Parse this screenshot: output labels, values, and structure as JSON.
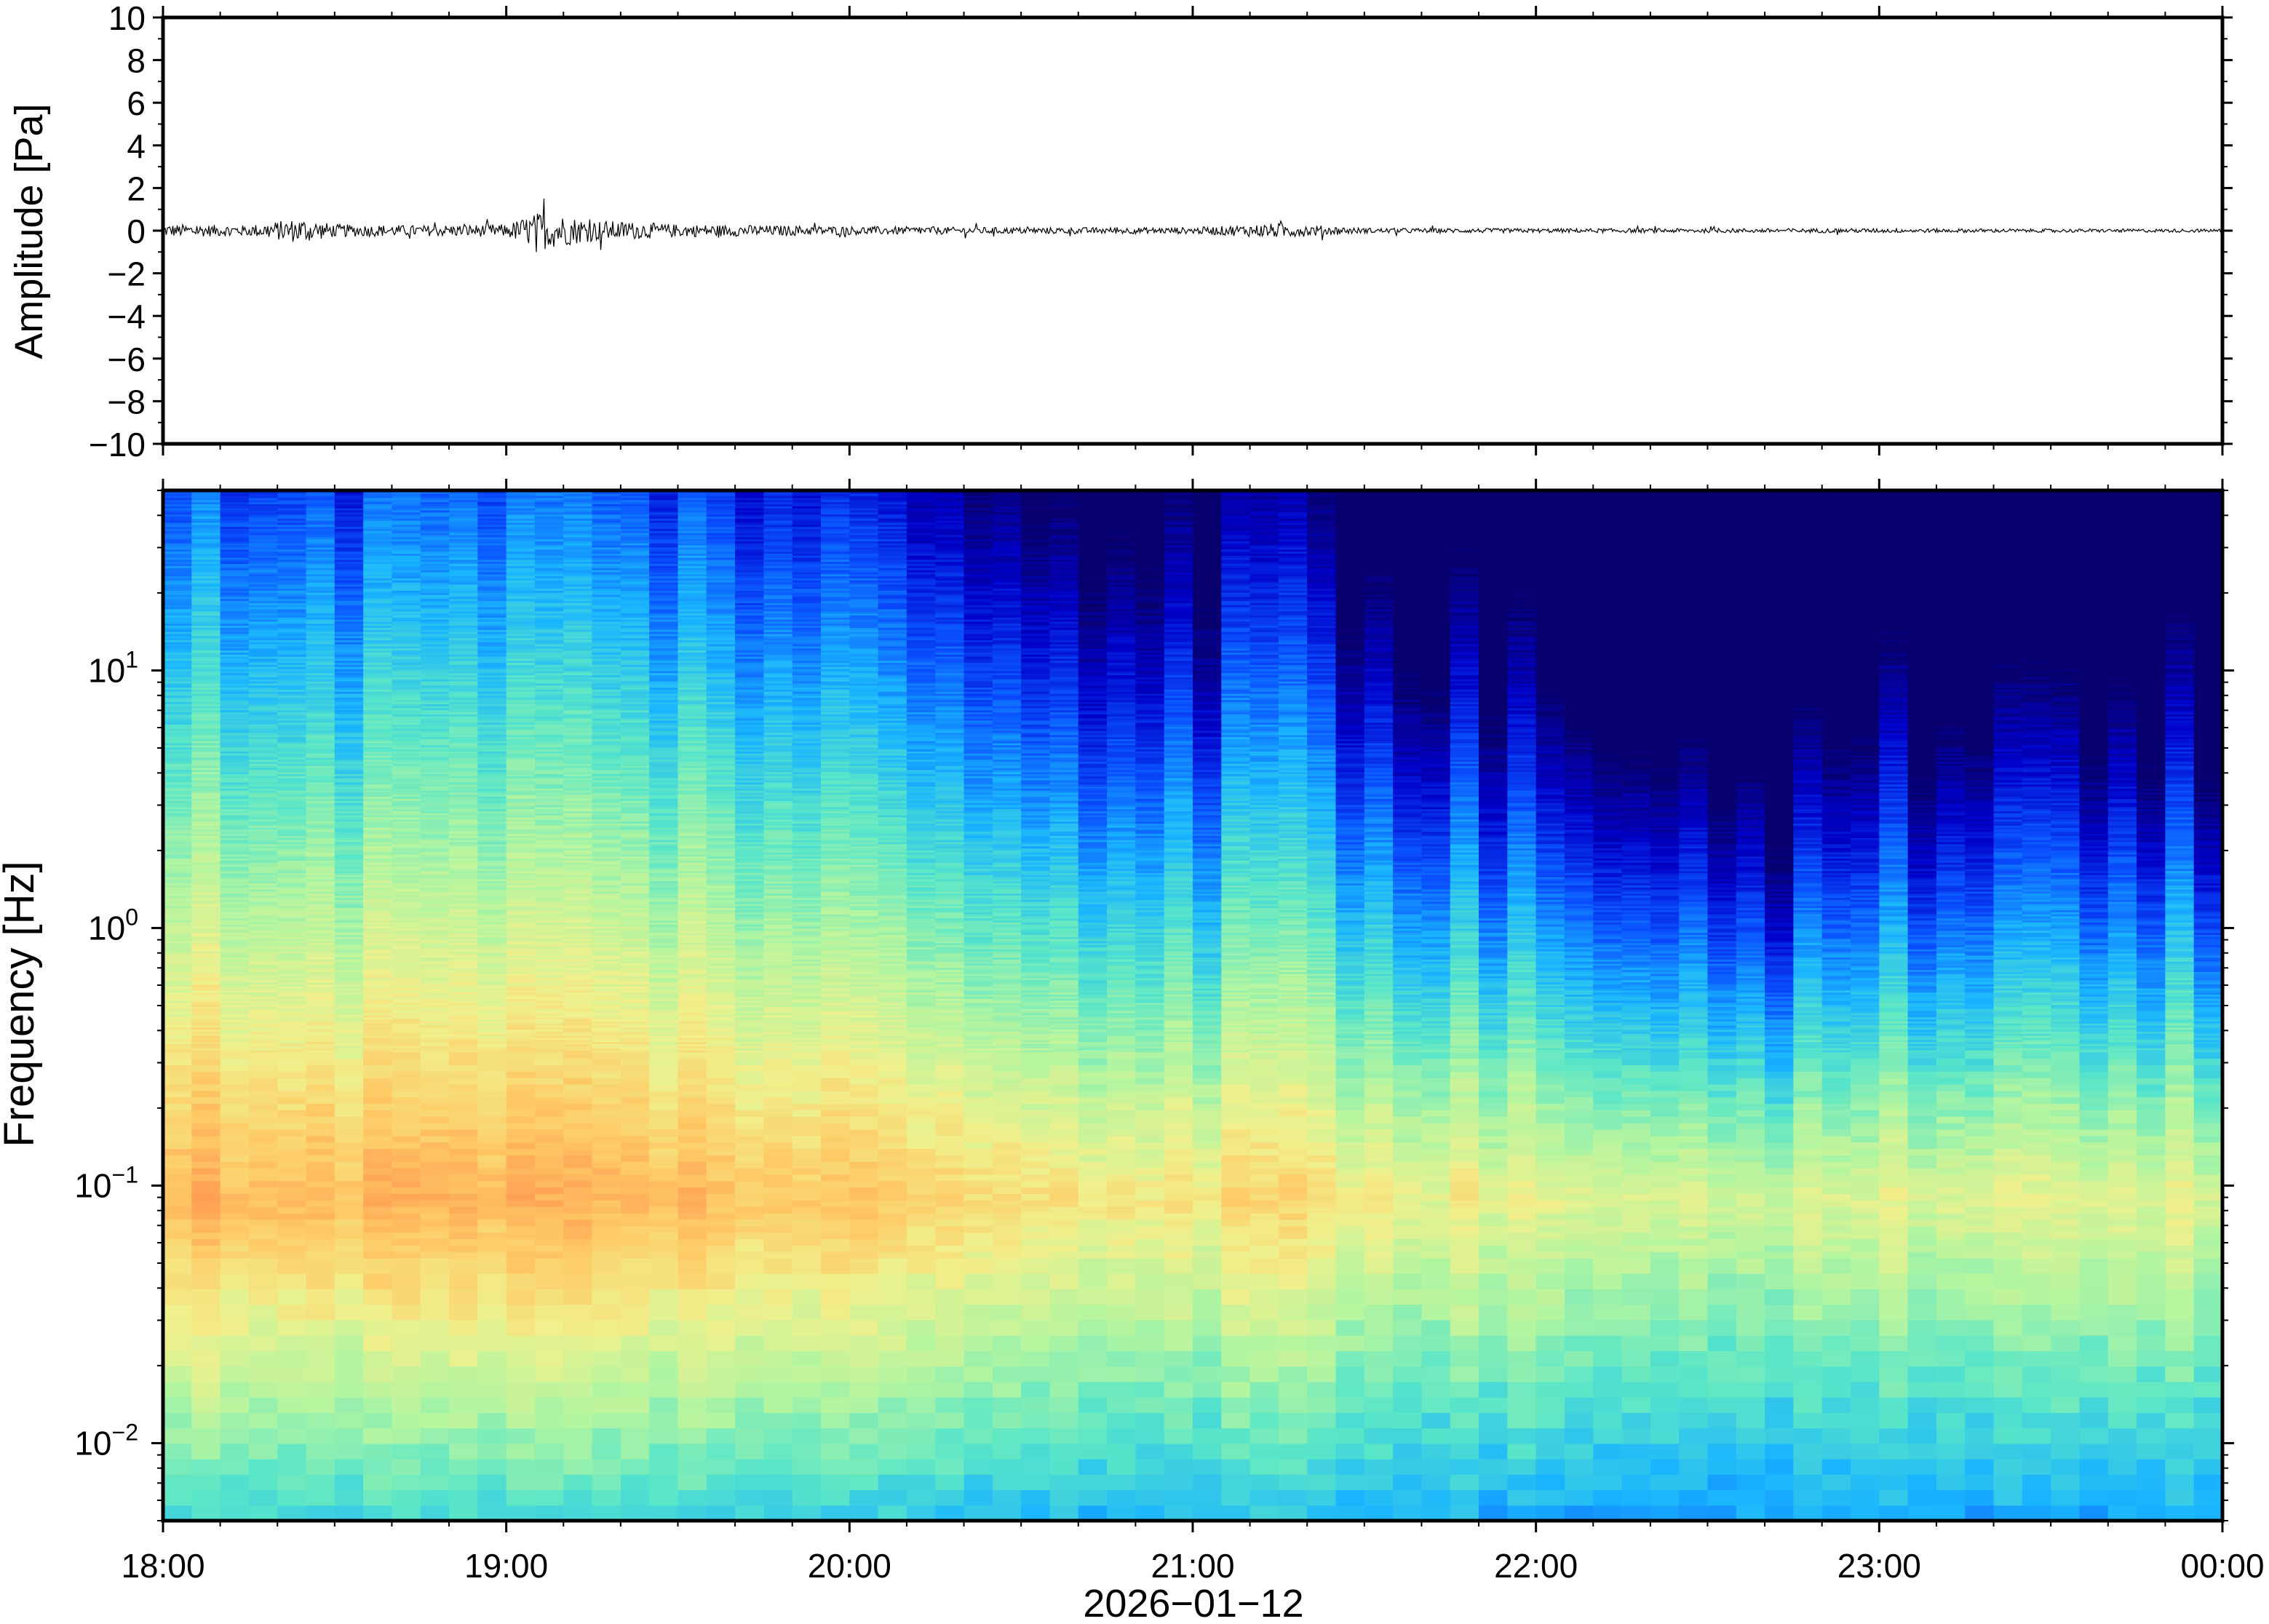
{
  "chart_data": [
    {
      "type": "line",
      "panel": "waveform",
      "ylabel": "Amplitude [Pa]",
      "ylim": [
        -10,
        10
      ],
      "yticks": [
        "10",
        "8",
        "6",
        "4",
        "2",
        "0",
        "−2",
        "−4",
        "−6",
        "−8",
        "−10"
      ],
      "x_range": [
        "18:00",
        "00:00"
      ],
      "series": [
        {
          "time_hours": [
            18.0,
            18.25,
            18.4,
            18.5,
            18.75,
            19.0,
            19.1,
            19.25,
            19.5,
            19.75,
            20.0,
            20.5,
            21.0,
            21.25,
            21.5,
            22.0,
            22.5,
            23.0,
            23.5,
            24.0
          ],
          "envelope_pa": [
            0.3,
            0.25,
            0.6,
            0.3,
            0.25,
            0.3,
            0.9,
            0.5,
            0.3,
            0.25,
            0.2,
            0.15,
            0.15,
            0.35,
            0.12,
            0.1,
            0.1,
            0.1,
            0.08,
            0.08
          ]
        }
      ]
    },
    {
      "type": "heatmap",
      "panel": "spectrogram",
      "ylabel": "Frequency [Hz]",
      "yscale": "log",
      "ylim": [
        0.005,
        50
      ],
      "ytick_labels": [
        {
          "value": 10,
          "base": "10",
          "exp": "1"
        },
        {
          "value": 1,
          "base": "10",
          "exp": "0"
        },
        {
          "value": 0.1,
          "base": "10",
          "exp": "−1"
        },
        {
          "value": 0.01,
          "base": "10",
          "exp": "−2"
        }
      ],
      "xlabel": "2026−01−12",
      "xtick_labels": [
        "18:00",
        "19:00",
        "20:00",
        "21:00",
        "22:00",
        "23:00",
        "00:00"
      ],
      "colormap": [
        "#08006e",
        "#0000c8",
        "#0a50ff",
        "#19b4ff",
        "#5ae6c8",
        "#b4f5a0",
        "#f0f08c",
        "#ffc864",
        "#ff9650"
      ],
      "power_profile": {
        "note_x": "time in hours since 18:00",
        "t": [
          0.0,
          0.5,
          1.0,
          1.5,
          2.0,
          2.5,
          3.0,
          3.25,
          3.5,
          4.0,
          4.5,
          4.7,
          5.0,
          5.5,
          6.0
        ],
        "loud_level": [
          0.95,
          0.9,
          0.95,
          0.9,
          0.8,
          0.7,
          0.6,
          0.75,
          0.55,
          0.5,
          0.45,
          0.4,
          0.45,
          0.5,
          0.45
        ]
      }
    }
  ]
}
